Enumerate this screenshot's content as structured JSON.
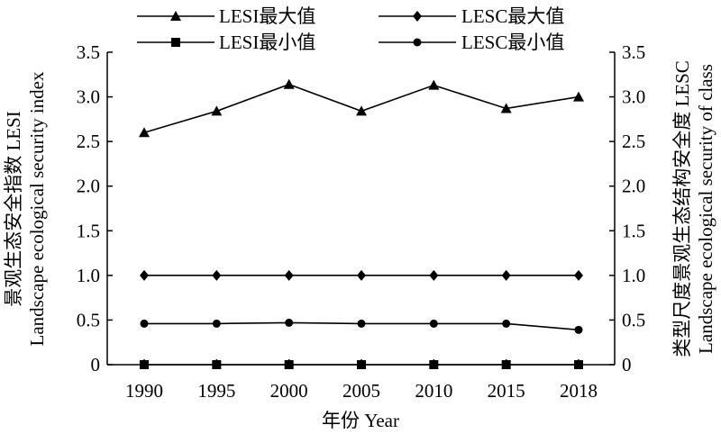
{
  "chart_data": {
    "type": "line",
    "x": [
      "1990",
      "1995",
      "2000",
      "2005",
      "2010",
      "2015",
      "2018"
    ],
    "xlabel": "年份 Year",
    "ylabel_left": [
      "景观生态安全指数 LESI",
      "Landscape ecological security index"
    ],
    "ylabel_right": [
      "类型尺度景观生态结构安全度 LESC",
      "Landscape ecological security of class"
    ],
    "ylim": [
      0,
      3.5
    ],
    "yticks": [
      "0",
      "0.5",
      "1.0",
      "1.5",
      "2.0",
      "2.5",
      "3.0",
      "3.5"
    ],
    "grid": false,
    "legend_position": "top",
    "series": [
      {
        "name": "LESI最大值",
        "marker": "triangle",
        "values": [
          2.6,
          2.84,
          3.14,
          2.84,
          3.13,
          2.87,
          3.0
        ]
      },
      {
        "name": "LESC最大值",
        "marker": "diamond",
        "values": [
          1.0,
          1.0,
          1.0,
          1.0,
          1.0,
          1.0,
          1.0
        ]
      },
      {
        "name": "LESI最小值",
        "marker": "square",
        "values": [
          0,
          0,
          0,
          0,
          0,
          0,
          0
        ]
      },
      {
        "name": "LESC最小值",
        "marker": "circle",
        "values": [
          0.46,
          0.46,
          0.47,
          0.46,
          0.46,
          0.46,
          0.39
        ]
      }
    ]
  }
}
